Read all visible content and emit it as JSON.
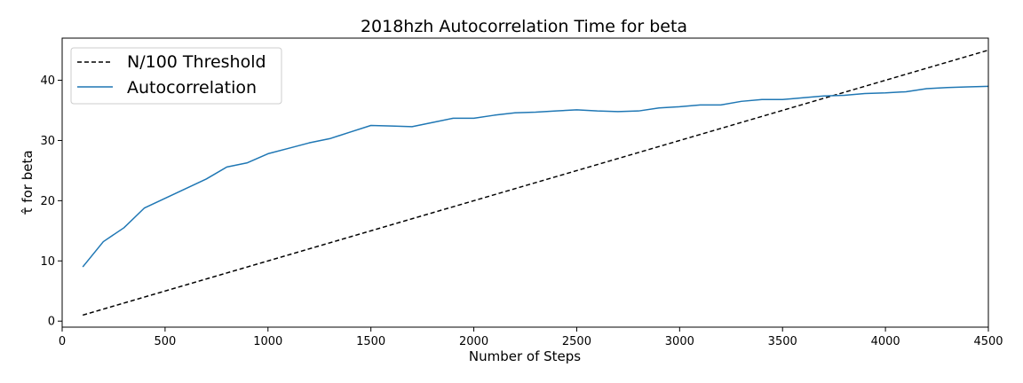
{
  "chart_data": {
    "type": "line",
    "title": "2018hzh Autocorrelation Time for beta",
    "xlabel": "Number of Steps",
    "ylabel": "τ̂ for beta",
    "xlim": [
      0,
      4500
    ],
    "ylim": [
      -1,
      47
    ],
    "xticks": [
      0,
      500,
      1000,
      1500,
      2000,
      2500,
      3000,
      3500,
      4000,
      4500
    ],
    "yticks": [
      0,
      10,
      20,
      30,
      40
    ],
    "grid": false,
    "legend_position": "upper-left",
    "series": [
      {
        "name": "N/100 Threshold",
        "color": "#000000",
        "style": "dashed",
        "x": [
          100,
          4500
        ],
        "y": [
          1,
          45
        ]
      },
      {
        "name": "Autocorrelation",
        "color": "#1f77b4",
        "style": "solid",
        "x": [
          100,
          200,
          300,
          400,
          500,
          600,
          700,
          800,
          900,
          1000,
          1100,
          1200,
          1300,
          1400,
          1500,
          1600,
          1700,
          1800,
          1900,
          2000,
          2100,
          2200,
          2300,
          2400,
          2500,
          2600,
          2700,
          2800,
          2900,
          3000,
          3100,
          3200,
          3300,
          3400,
          3500,
          3600,
          3700,
          3800,
          3900,
          4000,
          4100,
          4200,
          4300,
          4400,
          4500
        ],
        "y": [
          9.0,
          13.2,
          15.5,
          18.8,
          20.4,
          22.0,
          23.6,
          25.6,
          26.3,
          27.8,
          28.7,
          29.6,
          30.3,
          31.4,
          32.5,
          32.4,
          32.3,
          33.0,
          33.7,
          33.7,
          34.2,
          34.6,
          34.7,
          34.9,
          35.1,
          34.9,
          34.8,
          34.9,
          35.4,
          35.6,
          35.9,
          35.9,
          36.5,
          36.8,
          36.8,
          37.1,
          37.4,
          37.5,
          37.8,
          37.9,
          38.1,
          38.6,
          38.8,
          38.9,
          39.0
        ]
      }
    ]
  }
}
